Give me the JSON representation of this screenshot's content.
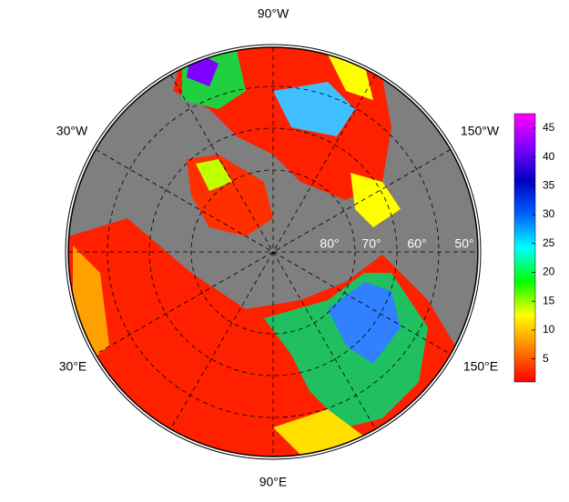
{
  "map": {
    "longitude_labels": [
      "90°W",
      "30°W",
      "150°W",
      "30°E",
      "90°E",
      "150°E"
    ],
    "latitude_labels": [
      "80°",
      "70°",
      "60°",
      "50°"
    ],
    "colorbar": {
      "range": [
        1,
        47.5
      ],
      "ticks": [
        5,
        10,
        15,
        20,
        25,
        30,
        35,
        40,
        45
      ],
      "colors": [
        "#ff0000",
        "#ff8000",
        "#ffff00",
        "#00ff00",
        "#00ffff",
        "#0060ff",
        "#0000c0",
        "#8000ff",
        "#ff00ff"
      ]
    }
  }
}
